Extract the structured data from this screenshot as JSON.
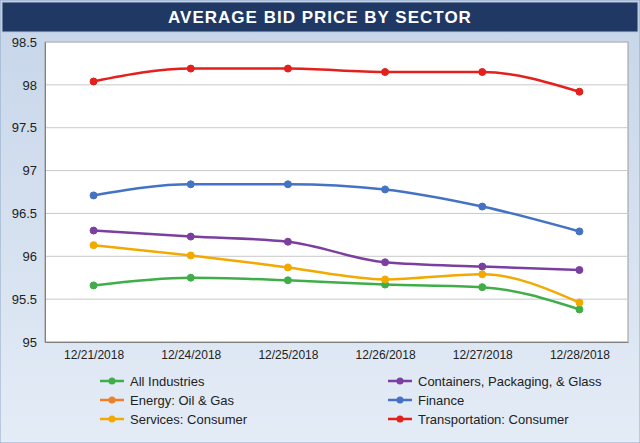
{
  "chart_data": {
    "type": "line",
    "title": "AVERAGE BID PRICE BY SECTOR",
    "categories": [
      "12/21/2018",
      "12/24/2018",
      "12/25/2018",
      "12/26/2018",
      "12/27/2018",
      "12/28/2018"
    ],
    "series": [
      {
        "name": "All Industries",
        "color": "#3fae49",
        "values": [
          95.66,
          95.75,
          95.72,
          95.67,
          95.64,
          95.38
        ]
      },
      {
        "name": "Containers, Packaging, & Glass",
        "color": "#7b3fa0",
        "values": [
          96.3,
          96.23,
          96.17,
          95.93,
          95.88,
          95.84
        ]
      },
      {
        "name": "Energy: Oil & Gas",
        "color": "#f07f2a",
        "values": [
          null,
          null,
          null,
          null,
          null,
          null
        ]
      },
      {
        "name": "Finance",
        "color": "#4472c4",
        "values": [
          96.71,
          96.84,
          96.84,
          96.78,
          96.58,
          96.29
        ]
      },
      {
        "name": "Services: Consumer",
        "color": "#f2a900",
        "values": [
          96.13,
          96.01,
          95.87,
          95.73,
          95.79,
          95.46
        ]
      },
      {
        "name": "Transportation: Consumer",
        "color": "#e3201b",
        "values": [
          98.04,
          98.19,
          98.19,
          98.15,
          98.15,
          97.92
        ]
      }
    ],
    "ylim": [
      95,
      98.5
    ],
    "yticks": [
      95,
      95.5,
      96,
      96.5,
      97,
      97.5,
      98,
      98.5
    ],
    "grid": true,
    "legend": "bottom",
    "marker": "circle"
  }
}
